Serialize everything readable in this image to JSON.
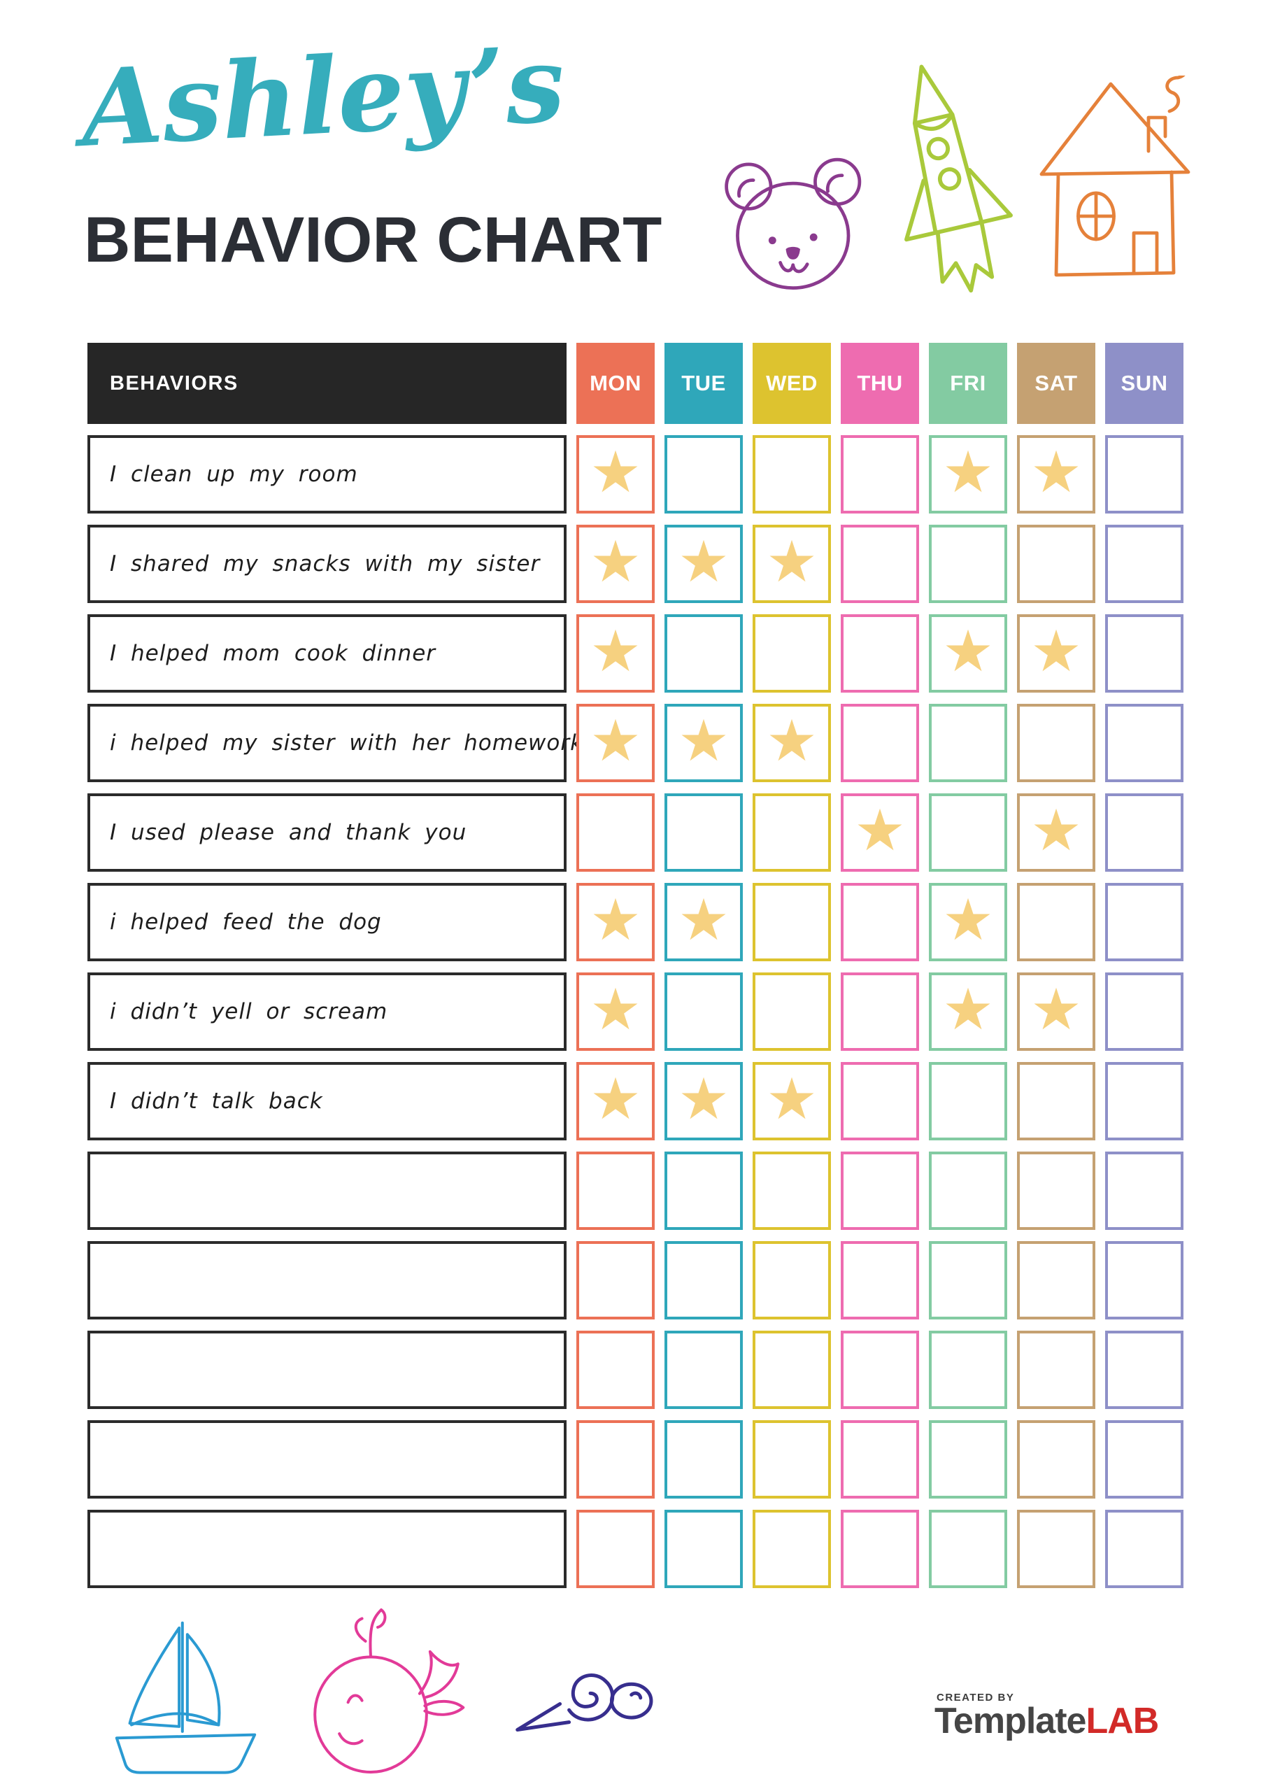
{
  "page": {
    "title_script": "Ashley’s",
    "title_main": "BEHAVIOR CHART"
  },
  "table": {
    "behaviors_header": "BEHAVIORS",
    "star_glyph": "★",
    "days": [
      {
        "label": "MON",
        "color": "#ec7156"
      },
      {
        "label": "TUE",
        "color": "#2fa7ba"
      },
      {
        "label": "WED",
        "color": "#ddc32f"
      },
      {
        "label": "THU",
        "color": "#ee6cb0"
      },
      {
        "label": "FRI",
        "color": "#83cba2"
      },
      {
        "label": "SAT",
        "color": "#c5a172"
      },
      {
        "label": "SUN",
        "color": "#8e90c8"
      }
    ],
    "rows": [
      {
        "behavior": "I clean up my room",
        "stars": [
          "MON",
          "FRI",
          "SAT"
        ]
      },
      {
        "behavior": "I shared my snacks with my sister",
        "stars": [
          "MON",
          "TUE",
          "WED"
        ]
      },
      {
        "behavior": "I helped mom cook dinner",
        "stars": [
          "MON",
          "FRI",
          "SAT"
        ]
      },
      {
        "behavior": "i helped my sister with her homework",
        "stars": [
          "MON",
          "TUE",
          "WED"
        ]
      },
      {
        "behavior": "I used please and thank you",
        "stars": [
          "THU",
          "SAT"
        ]
      },
      {
        "behavior": "i helped feed the dog",
        "stars": [
          "MON",
          "TUE",
          "FRI"
        ]
      },
      {
        "behavior": "i didn’t yell or scream",
        "stars": [
          "MON",
          "FRI",
          "SAT"
        ]
      },
      {
        "behavior": "I didn’t talk back",
        "stars": [
          "MON",
          "TUE",
          "WED"
        ]
      },
      {
        "behavior": "",
        "stars": []
      },
      {
        "behavior": "",
        "stars": []
      },
      {
        "behavior": "",
        "stars": []
      },
      {
        "behavior": "",
        "stars": []
      },
      {
        "behavior": "",
        "stars": []
      }
    ]
  },
  "icons": {
    "top": [
      {
        "name": "bear-icon",
        "color": "#8a3a8e"
      },
      {
        "name": "rocket-icon",
        "color": "#a9c93b"
      },
      {
        "name": "house-icon",
        "color": "#e5813a"
      }
    ],
    "bottom": [
      {
        "name": "sailboat-icon",
        "color": "#2a9ad2"
      },
      {
        "name": "whale-icon",
        "color": "#e23a98"
      },
      {
        "name": "snail-icon",
        "color": "#372e8e"
      }
    ]
  },
  "colors": {
    "title_script": "#36adbc",
    "title_main": "#2b2e35",
    "header_bg": "#262626",
    "header_text": "#ffffff",
    "row_border": "#2b2b2b",
    "star": "#f6d180",
    "logo_gray": "#454545",
    "logo_red": "#d22a28"
  },
  "footer": {
    "created_by": "CREATED BY",
    "brand_gray": "Template",
    "brand_red": "LAB"
  }
}
